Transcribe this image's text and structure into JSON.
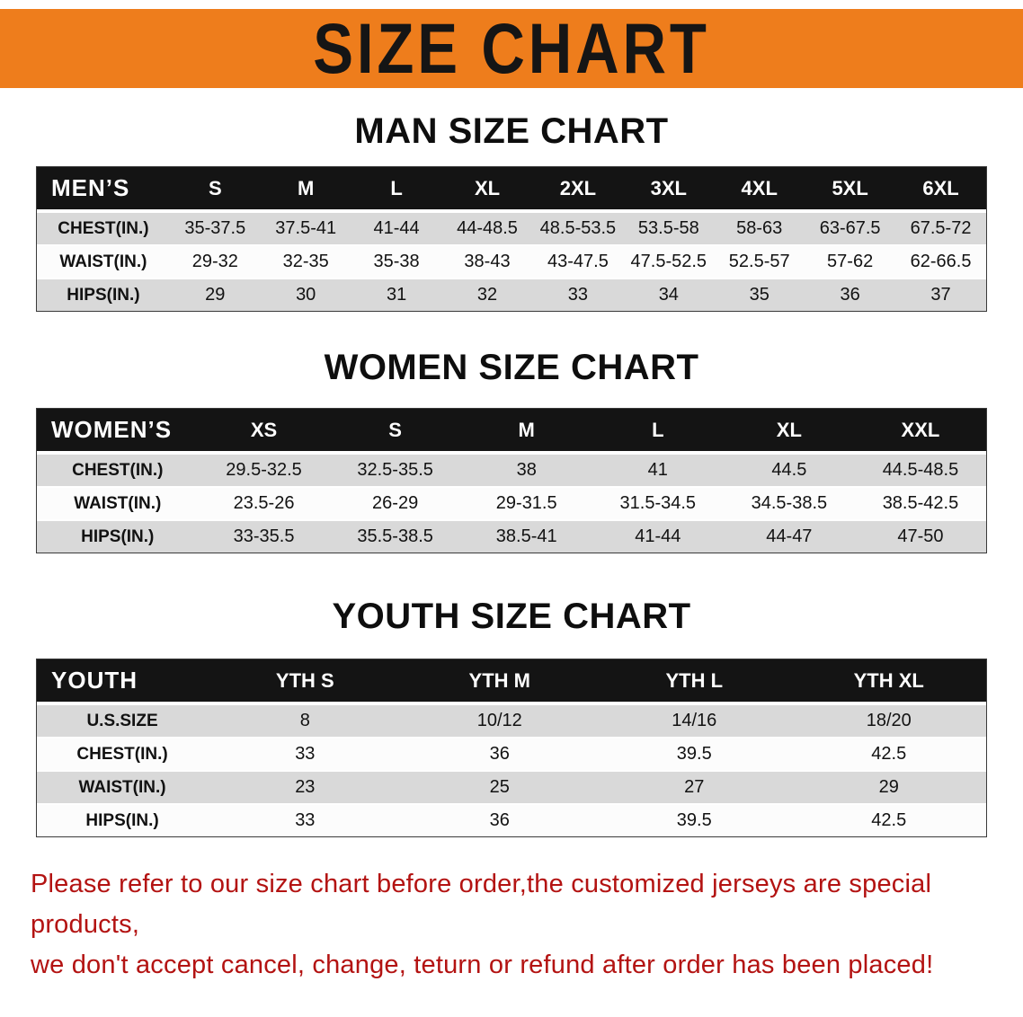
{
  "banner": {
    "title": "SIZE CHART"
  },
  "colors": {
    "banner_bg": "#ee7d1c",
    "table_header_bg": "#141414",
    "row_shade": "#d9d9d9",
    "footer_text": "#b31312"
  },
  "sections": [
    {
      "heading": "MAN SIZE CHART",
      "table": {
        "header": [
          "MEN’S",
          "S",
          "M",
          "L",
          "XL",
          "2XL",
          "3XL",
          "4XL",
          "5XL",
          "6XL"
        ],
        "rows": [
          [
            "CHEST(IN.)",
            "35-37.5",
            "37.5-41",
            "41-44",
            "44-48.5",
            "48.5-53.5",
            "53.5-58",
            "58-63",
            "63-67.5",
            "67.5-72"
          ],
          [
            "WAIST(IN.)",
            "29-32",
            "32-35",
            "35-38",
            "38-43",
            "43-47.5",
            "47.5-52.5",
            "52.5-57",
            "57-62",
            "62-66.5"
          ],
          [
            "HIPS(IN.)",
            "29",
            "30",
            "31",
            "32",
            "33",
            "34",
            "35",
            "36",
            "37"
          ]
        ]
      }
    },
    {
      "heading": "WOMEN SIZE CHART",
      "table": {
        "header": [
          "WOMEN’S",
          "XS",
          "S",
          "M",
          "L",
          "XL",
          "XXL"
        ],
        "rows": [
          [
            "CHEST(IN.)",
            "29.5-32.5",
            "32.5-35.5",
            "38",
            "41",
            "44.5",
            "44.5-48.5"
          ],
          [
            "WAIST(IN.)",
            "23.5-26",
            "26-29",
            "29-31.5",
            "31.5-34.5",
            "34.5-38.5",
            "38.5-42.5"
          ],
          [
            "HIPS(IN.)",
            "33-35.5",
            "35.5-38.5",
            "38.5-41",
            "41-44",
            "44-47",
            "47-50"
          ]
        ]
      }
    },
    {
      "heading": "YOUTH SIZE CHART",
      "table": {
        "header": [
          "YOUTH",
          "YTH S",
          "YTH M",
          "YTH L",
          "YTH XL"
        ],
        "rows": [
          [
            "U.S.SIZE",
            "8",
            "10/12",
            "14/16",
            "18/20"
          ],
          [
            "CHEST(IN.)",
            "33",
            "36",
            "39.5",
            "42.5"
          ],
          [
            "WAIST(IN.)",
            "23",
            "25",
            "27",
            "29"
          ],
          [
            "HIPS(IN.)",
            "33",
            "36",
            "39.5",
            "42.5"
          ]
        ]
      }
    }
  ],
  "footer": {
    "line1": "Please refer to our size chart before order,the customized jerseys are special products,",
    "line2": "we don't accept cancel, change, teturn or refund after order has been placed!"
  }
}
